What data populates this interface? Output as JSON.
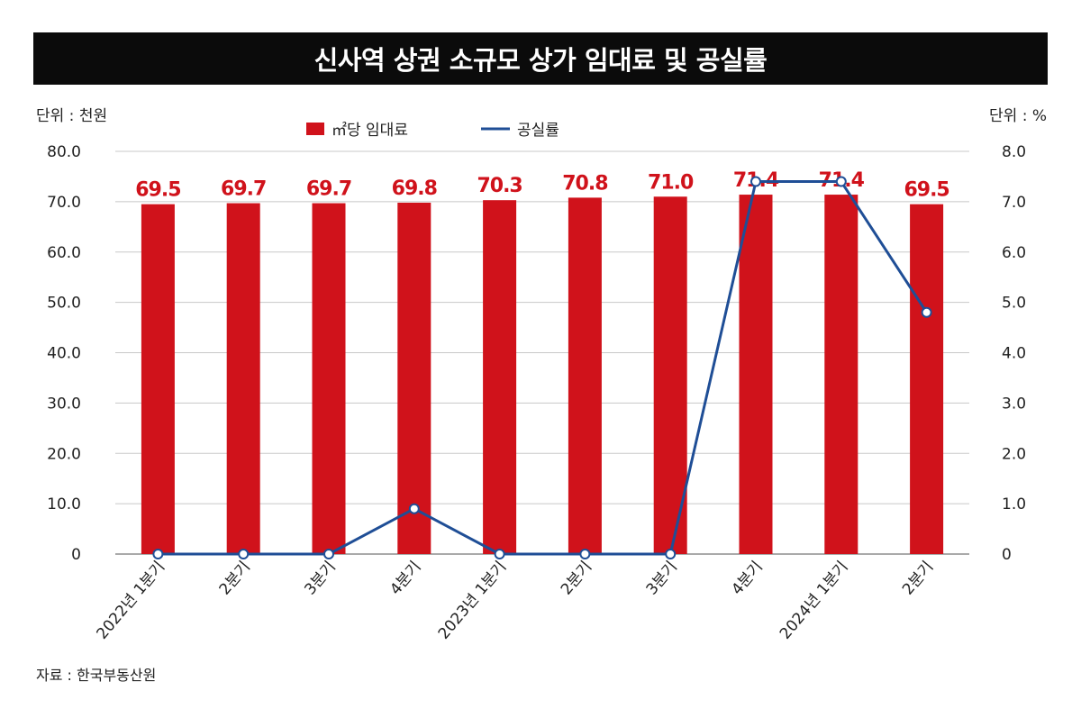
{
  "title": "신사역 상권 소규모 상가 임대료 및 공실률",
  "unit_left": "단위 : 천원",
  "unit_right": "단위 : %",
  "source": "자료 : 한국부동산원",
  "colors": {
    "bar": "#d0121b",
    "line": "#1f4e96",
    "grid": "#c8c8c8"
  },
  "chart_data": {
    "type": "bar",
    "categories": [
      "2022년 1분기",
      "2분기",
      "3분기",
      "4분기",
      "2023년 1분기",
      "2분기",
      "3분기",
      "4분기",
      "2024년 1분기",
      "2분기"
    ],
    "series": [
      {
        "name": "㎡당 임대료",
        "type": "bar",
        "axis": "left",
        "values": [
          69.5,
          69.7,
          69.7,
          69.8,
          70.3,
          70.8,
          71.0,
          71.4,
          71.4,
          69.5
        ],
        "labels": [
          "69.5",
          "69.7",
          "69.7",
          "69.8",
          "70.3",
          "70.8",
          "71.0",
          "71.4",
          "71.4",
          "69.5"
        ]
      },
      {
        "name": "공실률",
        "type": "line",
        "axis": "right",
        "values": [
          0,
          0,
          0,
          0.9,
          0,
          0,
          0,
          7.4,
          7.4,
          4.8
        ]
      }
    ],
    "y_left": {
      "range": [
        0,
        80
      ],
      "ticks": [
        "0",
        "10.0",
        "20.0",
        "30.0",
        "40.0",
        "50.0",
        "60.0",
        "70.0",
        "80.0"
      ]
    },
    "y_right": {
      "range": [
        0,
        8
      ],
      "ticks": [
        "0",
        "1.0",
        "2.0",
        "3.0",
        "4.0",
        "5.0",
        "6.0",
        "7.0",
        "8.0"
      ]
    },
    "grid": true,
    "legend_position": "top-center"
  }
}
